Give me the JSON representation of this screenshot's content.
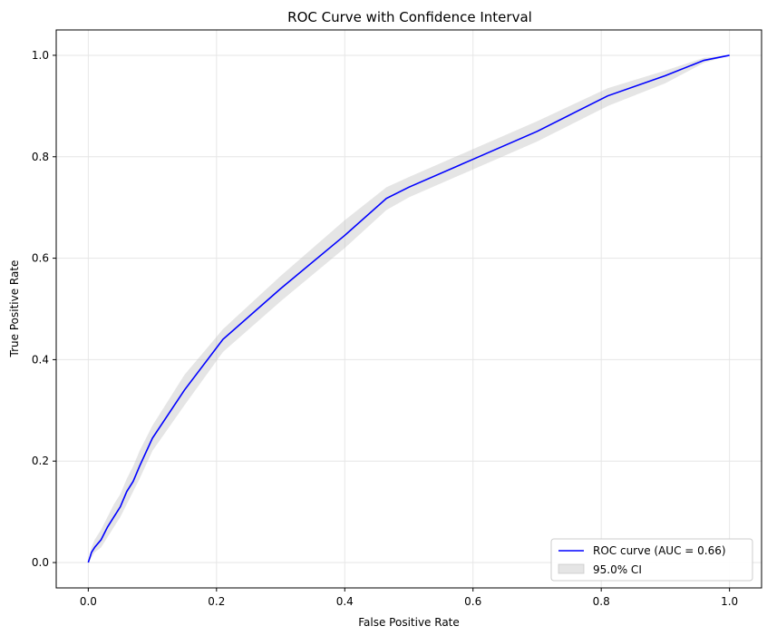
{
  "chart_data": {
    "type": "line",
    "title": "ROC Curve with Confidence Interval",
    "xlabel": "False Positive Rate",
    "ylabel": "True Positive Rate",
    "xlim": [
      -0.05,
      1.05
    ],
    "ylim": [
      -0.05,
      1.05
    ],
    "xticks": [
      "0.0",
      "0.2",
      "0.4",
      "0.6",
      "0.8",
      "1.0"
    ],
    "yticks": [
      "0.0",
      "0.2",
      "0.4",
      "0.6",
      "0.8",
      "1.0"
    ],
    "grid": true,
    "legend_position": "bottom-right",
    "colors": {
      "line": "#0000ff",
      "band": "#bdbdbd",
      "grid": "#e6e6e6"
    },
    "series": [
      {
        "name": "ROC curve (AUC = 0.66)",
        "x": [
          0.0,
          0.005,
          0.01,
          0.02,
          0.03,
          0.04,
          0.05,
          0.06,
          0.07,
          0.08,
          0.1,
          0.15,
          0.21,
          0.3,
          0.4,
          0.465,
          0.5,
          0.6,
          0.7,
          0.81,
          0.9,
          0.96,
          1.0
        ],
        "y": [
          0.0,
          0.02,
          0.03,
          0.045,
          0.07,
          0.09,
          0.11,
          0.14,
          0.16,
          0.19,
          0.245,
          0.34,
          0.44,
          0.54,
          0.645,
          0.718,
          0.74,
          0.795,
          0.85,
          0.92,
          0.96,
          0.99,
          1.0
        ]
      }
    ],
    "ci_band": {
      "name": "95.0% CI",
      "x": [
        0.0,
        0.005,
        0.01,
        0.02,
        0.03,
        0.04,
        0.05,
        0.06,
        0.07,
        0.08,
        0.1,
        0.15,
        0.21,
        0.3,
        0.4,
        0.465,
        0.5,
        0.6,
        0.7,
        0.81,
        0.9,
        0.96,
        1.0
      ],
      "lower": [
        0.0,
        0.01,
        0.02,
        0.03,
        0.05,
        0.07,
        0.09,
        0.115,
        0.14,
        0.165,
        0.22,
        0.31,
        0.415,
        0.515,
        0.62,
        0.695,
        0.72,
        0.775,
        0.83,
        0.9,
        0.945,
        0.985,
        1.0
      ],
      "upper": [
        0.0,
        0.03,
        0.045,
        0.065,
        0.09,
        0.115,
        0.135,
        0.165,
        0.19,
        0.22,
        0.27,
        0.37,
        0.46,
        0.565,
        0.675,
        0.74,
        0.76,
        0.815,
        0.87,
        0.935,
        0.97,
        0.995,
        1.0
      ]
    }
  }
}
